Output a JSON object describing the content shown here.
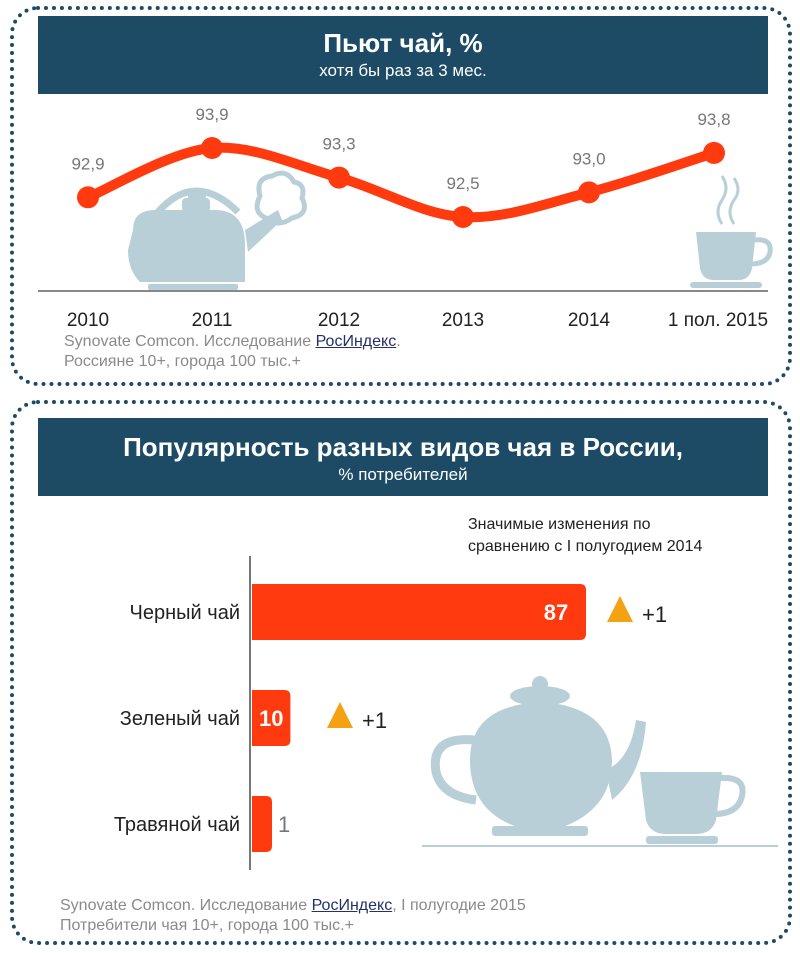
{
  "top_panel": {
    "title": "Пьют чай, %",
    "subtitle": "хотя бы раз за 3 мес.",
    "note_prefix": "Synovate Comcon. Исследование ",
    "note_link": "РосИндекс",
    "note_suffix": ".",
    "note_line2": "Россияне 10+, города 100 тыс.+"
  },
  "bottom_panel": {
    "title": "Популярность разных видов чая в России,",
    "subtitle": "% потребителей",
    "changes_title_line1": "Значимые изменения по",
    "changes_title_line2": "сравнению с I полугодием 2014",
    "note_prefix": "Synovate Comcon. Исследование ",
    "note_link": "РосИндекс",
    "note_suffix": ", I полугодие 2015",
    "note_line2": "Потребители чая 10+, города 100 тыс.+"
  },
  "colors": {
    "accent": "#ff3a0f",
    "banner": "#1d4b66",
    "icon": "#b9cfd8",
    "triangle": "#f5a114"
  },
  "chart_data": [
    {
      "type": "line",
      "title": "Пьют чай, %",
      "categories": [
        "2010",
        "2011",
        "2012",
        "2013",
        "2014",
        "1 пол. 2015"
      ],
      "labels": [
        "92,9",
        "93,9",
        "93,3",
        "92,5",
        "93,0",
        "93,8"
      ],
      "values": [
        92.9,
        93.9,
        93.3,
        92.5,
        93.0,
        93.8
      ],
      "ylim": [
        92.0,
        94.2
      ]
    },
    {
      "type": "bar",
      "orientation": "horizontal",
      "title": "Популярность разных видов чая в России, % потребителей",
      "categories": [
        "Черный чай",
        "Зеленый чай",
        "Травяной чай"
      ],
      "values": [
        87,
        10,
        1
      ],
      "changes": [
        "+1",
        "+1",
        ""
      ]
    }
  ]
}
